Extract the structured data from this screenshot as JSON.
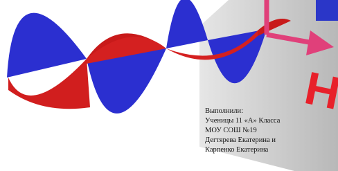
{
  "credits": {
    "heading": "Выполнили:",
    "lines": [
      "Ученицы 11 «А» Класса",
      "МОУ СОШ №19",
      "Дегтярева Екатерина и",
      "Карпенко Екатерина"
    ]
  },
  "label": "H"
}
